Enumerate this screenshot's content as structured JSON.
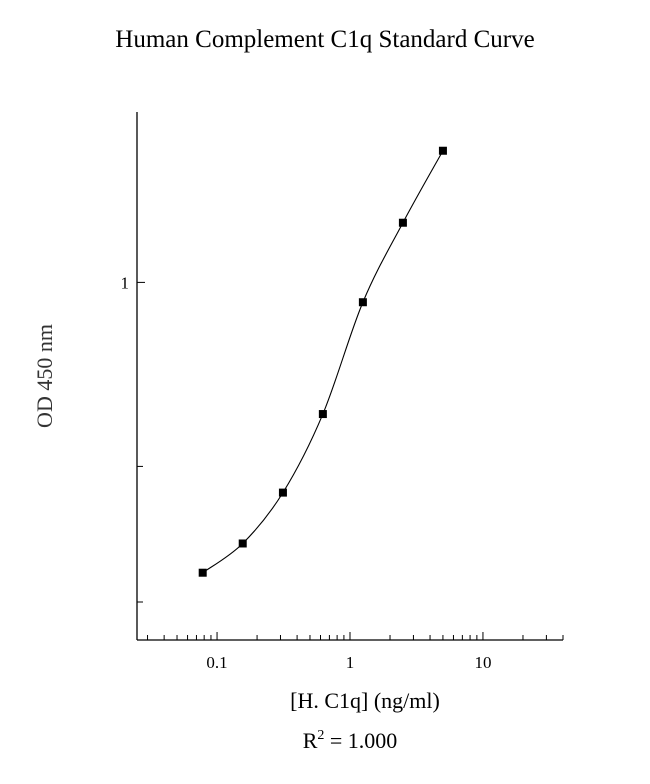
{
  "chart_data": {
    "type": "line",
    "title": "Human Complement C1q Standard Curve",
    "xlabel": "[H. C1q] (ng/ml)",
    "ylabel": "OD 450 nm",
    "x_scale": "log",
    "y_scale": "log",
    "xlim": [
      0.025,
      40
    ],
    "ylim": [
      0.26,
      1.9
    ],
    "x_ticks": [
      {
        "value": 0.1,
        "label": "0.1"
      },
      {
        "value": 1,
        "label": "1"
      },
      {
        "value": 10,
        "label": "10"
      }
    ],
    "y_ticks": [
      {
        "value": 1,
        "label": "1"
      }
    ],
    "series": [
      {
        "x": [
          0.078,
          0.156,
          0.313,
          0.625,
          1.25,
          2.5,
          5.0
        ],
        "y": [
          0.335,
          0.374,
          0.453,
          0.609,
          0.928,
          1.252,
          1.642
        ]
      }
    ],
    "grid": false,
    "legend": "none",
    "annotation": {
      "prefix": "R",
      "superscript": "2",
      "suffix": " = 1.000"
    }
  }
}
